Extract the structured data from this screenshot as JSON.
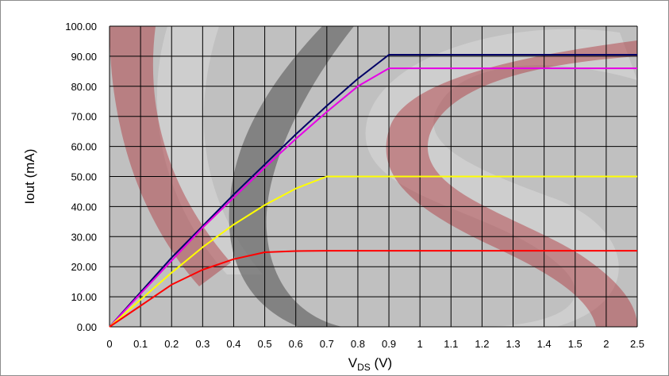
{
  "chart_data": {
    "type": "line",
    "title": "",
    "ylabel": "Iout (mA)",
    "xlabel": {
      "main": "V",
      "sub": "DS",
      "unit": " (V)"
    },
    "categories": [
      "0",
      "0.1",
      "0.2",
      "0.3",
      "0.4",
      "0.5",
      "0.6",
      "0.7",
      "0.8",
      "0.9",
      "1",
      "1.1",
      "1.2",
      "1.3",
      "1.4",
      "1.5",
      "2",
      "2.5"
    ],
    "yticks": [
      "0.00",
      "10.00",
      "20.00",
      "30.00",
      "40.00",
      "50.00",
      "60.00",
      "70.00",
      "80.00",
      "90.00",
      "100.00"
    ],
    "ylim": [
      0,
      100
    ],
    "grid": true,
    "legend": "none",
    "series": [
      {
        "color": "#000066",
        "values": [
          0,
          11.5,
          23,
          33.5,
          44,
          54,
          64,
          73.5,
          82.5,
          90.5,
          90.5,
          90.5,
          90.5,
          90.5,
          90.5,
          90.5,
          90.5,
          90.5
        ]
      },
      {
        "color": "#e600e6",
        "values": [
          0,
          11,
          22,
          33,
          43,
          53,
          62.5,
          71.5,
          80,
          86,
          86,
          86,
          86,
          86,
          86,
          86,
          86,
          86
        ]
      },
      {
        "color": "#ffff00",
        "values": [
          0,
          9,
          18,
          26.5,
          34,
          40.5,
          46,
          50,
          50,
          50,
          50,
          50,
          50,
          50,
          50,
          50,
          50,
          50
        ]
      },
      {
        "color": "#ff0000",
        "values": [
          0,
          7,
          14,
          19,
          22.5,
          24.8,
          25.2,
          25.3,
          25.3,
          25.3,
          25.3,
          25.3,
          25.3,
          25.3,
          25.3,
          25.3,
          25.3,
          25.3
        ]
      }
    ]
  }
}
